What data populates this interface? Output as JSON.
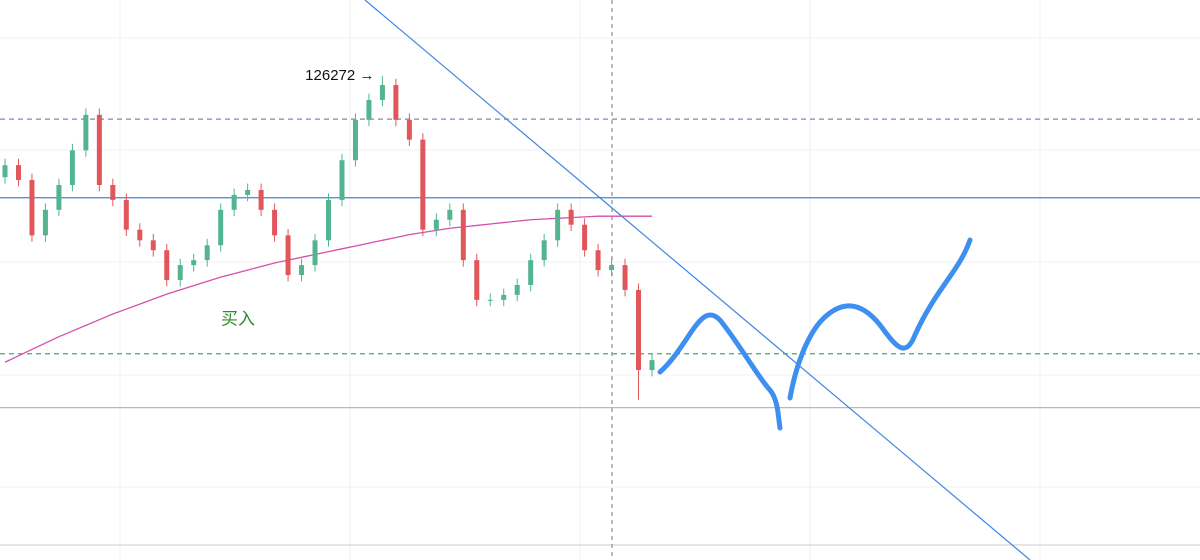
{
  "chart_data": {
    "type": "candlestick",
    "annotation": "126272 →",
    "buy_label": "买入",
    "ylim": [
      58000,
      137000
    ],
    "categories": [
      null,
      null,
      null,
      null,
      null,
      null,
      null,
      null,
      null,
      null,
      null,
      null,
      null,
      null,
      null,
      null,
      null,
      null,
      null,
      null,
      null,
      null,
      null,
      null,
      null,
      null,
      null,
      null,
      null,
      null,
      null,
      null,
      null,
      null,
      null,
      null,
      null,
      null,
      null,
      null,
      null,
      null,
      null,
      null,
      null,
      null,
      null,
      null,
      null
    ],
    "open": [
      112000,
      113700,
      111600,
      103800,
      107400,
      110900,
      115800,
      120800,
      110900,
      108800,
      104600,
      103100,
      101700,
      97500,
      99600,
      100300,
      102400,
      107400,
      109500,
      110200,
      107400,
      103800,
      98200,
      99600,
      103100,
      108800,
      114400,
      120100,
      122900,
      125000,
      120100,
      117300,
      104600,
      106000,
      107400,
      100300,
      94700,
      94700,
      95400,
      96800,
      100300,
      103100,
      107400,
      105300,
      101700,
      98900,
      99600,
      96100,
      84800
    ],
    "high": [
      114600,
      114600,
      112500,
      108300,
      111800,
      116700,
      121700,
      121700,
      111800,
      109700,
      105500,
      104000,
      102600,
      100500,
      101200,
      103300,
      108300,
      110400,
      111100,
      111100,
      108300,
      104700,
      100500,
      104000,
      109700,
      115300,
      121000,
      123800,
      126272,
      125900,
      121000,
      118200,
      106900,
      108300,
      108300,
      101200,
      95600,
      96300,
      97700,
      101200,
      104000,
      108300,
      108300,
      106200,
      102600,
      100500,
      100500,
      97000,
      87100
    ],
    "low": [
      111100,
      110700,
      102900,
      102900,
      106500,
      110000,
      114900,
      110000,
      107900,
      103700,
      102200,
      100800,
      96600,
      96600,
      98700,
      99400,
      101500,
      106500,
      108600,
      106500,
      102900,
      97300,
      97300,
      98700,
      102200,
      107900,
      113500,
      119200,
      122000,
      119200,
      116400,
      103700,
      103700,
      105100,
      99400,
      93800,
      93800,
      93800,
      94500,
      95900,
      99400,
      102200,
      104400,
      100800,
      98000,
      98000,
      95200,
      80600,
      83900
    ],
    "close": [
      113700,
      111600,
      103800,
      107400,
      110900,
      115800,
      120800,
      110900,
      108800,
      104600,
      103100,
      101700,
      97500,
      99600,
      100300,
      102400,
      107400,
      109500,
      110200,
      107400,
      103800,
      98200,
      99600,
      103100,
      108800,
      114400,
      120100,
      122900,
      125000,
      120100,
      117300,
      104600,
      106000,
      107400,
      100300,
      94700,
      94700,
      95400,
      96800,
      100300,
      103100,
      107400,
      105300,
      101700,
      98900,
      99600,
      96100,
      84800,
      86200
    ],
    "up_color": "#52b590",
    "down_color": "#e0565b",
    "moving_average": {
      "color": "#d64fb0",
      "values": [
        85900,
        86800,
        87700,
        88600,
        89500,
        90300,
        91100,
        91900,
        92700,
        93400,
        94100,
        94800,
        95500,
        96100,
        96700,
        97300,
        97900,
        98400,
        98900,
        99400,
        99900,
        100300,
        100700,
        101100,
        101500,
        101900,
        102300,
        102700,
        103100,
        103500,
        103900,
        104200,
        104500,
        104800,
        105000,
        105200,
        105400,
        105600,
        105800,
        106000,
        106100,
        106200,
        106300,
        106400,
        106500,
        106500,
        106500,
        106500,
        106500
      ]
    },
    "levels": [
      {
        "value": 120200,
        "color": "#8a84b0",
        "dashed": true
      },
      {
        "value": 109100,
        "color": "#3d86e0",
        "dashed": false
      },
      {
        "value": 87100,
        "color": "#48a86a",
        "dashed": true
      },
      {
        "value": 79500,
        "color": "#b8b8b8",
        "dashed": false
      }
    ]
  }
}
